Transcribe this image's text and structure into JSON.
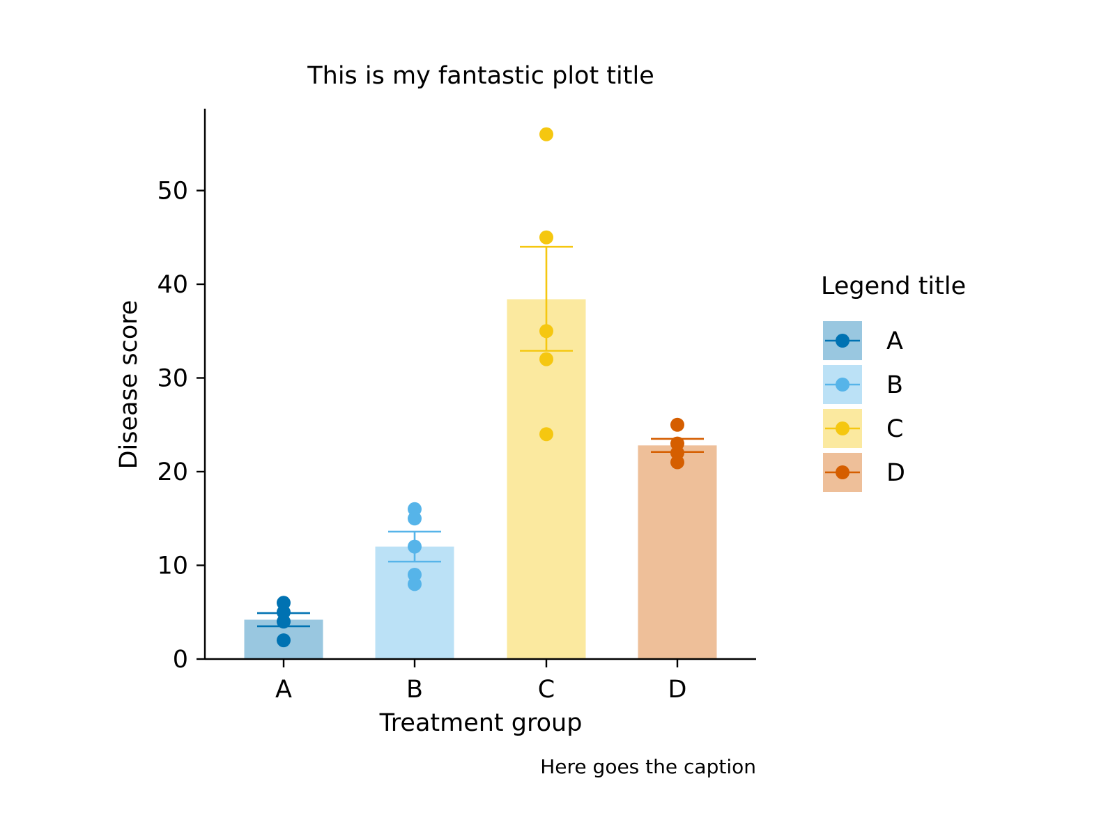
{
  "chart_data": {
    "type": "bar",
    "title": "This is my fantastic plot title",
    "xlabel": "Treatment group",
    "ylabel": "Disease score",
    "caption": "Here goes the caption",
    "categories": [
      "A",
      "B",
      "C",
      "D"
    ],
    "bar_values": [
      4.2,
      12.0,
      38.4,
      22.8
    ],
    "error_bars": [
      {
        "low": 3.5,
        "high": 4.9
      },
      {
        "low": 10.4,
        "high": 13.6
      },
      {
        "low": 32.9,
        "high": 44.0
      },
      {
        "low": 22.1,
        "high": 23.5
      }
    ],
    "points": [
      [
        6,
        5,
        4,
        2
      ],
      [
        16,
        15,
        12,
        9,
        8
      ],
      [
        56,
        45,
        35,
        32,
        24
      ],
      [
        25,
        23,
        22,
        21
      ]
    ],
    "ylim": [
      0,
      59
    ],
    "yticks": [
      0,
      10,
      20,
      30,
      40,
      50
    ],
    "grid": false,
    "legend": {
      "title": "Legend title",
      "placement": "right",
      "entries": [
        "A",
        "B",
        "C",
        "D"
      ]
    },
    "colors": [
      "#0072B2",
      "#56B4E9",
      "#F5C710",
      "#D55E00"
    ],
    "bar_opacity": 0.4
  }
}
